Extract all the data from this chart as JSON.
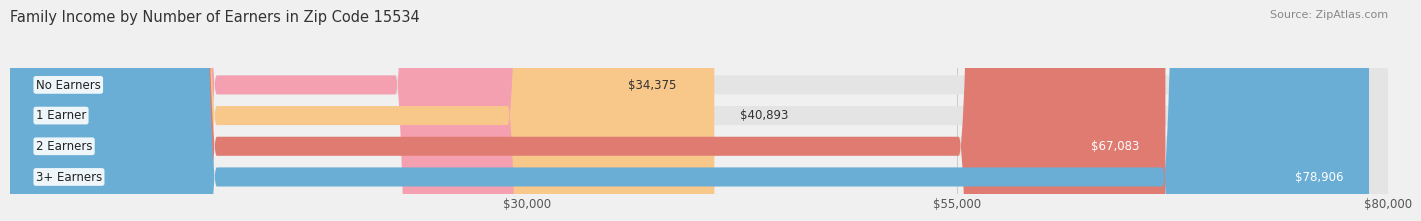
{
  "title": "Family Income by Number of Earners in Zip Code 15534",
  "source": "Source: ZipAtlas.com",
  "categories": [
    "No Earners",
    "1 Earner",
    "2 Earners",
    "3+ Earners"
  ],
  "values": [
    34375,
    40893,
    67083,
    78906
  ],
  "bar_colors": [
    "#f4a0b0",
    "#f8c88a",
    "#e07b72",
    "#6aaed6"
  ],
  "label_colors": [
    "#555555",
    "#555555",
    "#ffffff",
    "#ffffff"
  ],
  "xmax": 80000,
  "xticks": [
    30000,
    55000,
    80000
  ],
  "xtick_labels": [
    "$30,000",
    "$55,000",
    "$80,000"
  ],
  "background_color": "#f0f0f0",
  "bar_bg_color": "#e4e4e4",
  "title_fontsize": 10.5,
  "source_fontsize": 8,
  "bar_label_fontsize": 8.5,
  "category_fontsize": 8.5
}
